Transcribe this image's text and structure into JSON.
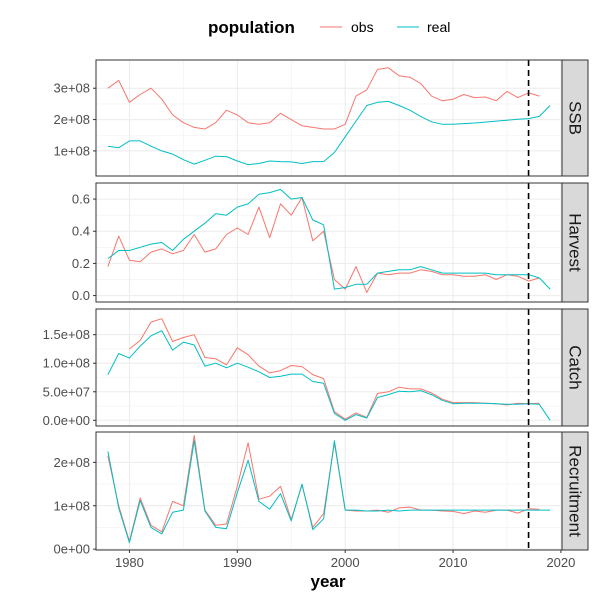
{
  "chart_data": {
    "type": "line",
    "xlabel": "year",
    "legend": {
      "title": "population",
      "position": "top",
      "entries": [
        "obs",
        "real"
      ]
    },
    "colors": {
      "obs": "#F8766D",
      "real": "#00BFC4"
    },
    "vline": {
      "x": 2017,
      "style": "dashed",
      "color": "#000000"
    },
    "x_axis": {
      "ticks": [
        1980,
        1990,
        2000,
        2010,
        2020
      ],
      "tick_labels": [
        "1980",
        "1990",
        "2000",
        "2010",
        "2020"
      ],
      "range": [
        1976.9,
        2020.1
      ]
    },
    "grid": true,
    "panels": [
      {
        "strip": "SSB",
        "ylim": [
          20000000,
          390000000
        ],
        "ticks": [
          100000000,
          200000000,
          300000000
        ],
        "tick_labels": [
          "1e+08",
          "2e+08",
          "3e+08"
        ],
        "series": [
          {
            "name": "obs",
            "x": [
              1978,
              1979,
              1980,
              1981,
              1982,
              1983,
              1984,
              1985,
              1986,
              1987,
              1988,
              1989,
              1990,
              1991,
              1992,
              1993,
              1994,
              1995,
              1996,
              1997,
              1998,
              1999,
              2000,
              2001,
              2002,
              2003,
              2004,
              2005,
              2006,
              2007,
              2008,
              2009,
              2010,
              2011,
              2012,
              2013,
              2014,
              2015,
              2016,
              2017,
              2018
            ],
            "values": [
              300000000,
              325000000,
              255000000,
              280000000,
              300000000,
              265000000,
              215000000,
              190000000,
              175000000,
              170000000,
              190000000,
              230000000,
              215000000,
              190000000,
              185000000,
              190000000,
              220000000,
              200000000,
              180000000,
              175000000,
              170000000,
              170000000,
              185000000,
              275000000,
              295000000,
              360000000,
              365000000,
              340000000,
              335000000,
              315000000,
              275000000,
              260000000,
              265000000,
              280000000,
              270000000,
              272000000,
              260000000,
              290000000,
              270000000,
              285000000,
              275000000
            ]
          },
          {
            "name": "real",
            "x": [
              1978,
              1979,
              1980,
              1981,
              1982,
              1983,
              1984,
              1985,
              1986,
              1987,
              1988,
              1989,
              1990,
              1991,
              1992,
              1993,
              1994,
              1995,
              1996,
              1997,
              1998,
              1999,
              2000,
              2001,
              2002,
              2003,
              2004,
              2005,
              2006,
              2007,
              2008,
              2009,
              2010,
              2011,
              2012,
              2013,
              2014,
              2015,
              2016,
              2017,
              2018,
              2019
            ],
            "values": [
              115000000,
              110000000,
              132000000,
              132000000,
              115000000,
              100000000,
              90000000,
              72000000,
              58000000,
              70000000,
              83000000,
              82000000,
              68000000,
              56000000,
              60000000,
              68000000,
              66000000,
              65000000,
              60000000,
              66000000,
              66000000,
              95000000,
              145000000,
              195000000,
              245000000,
              255000000,
              258000000,
              245000000,
              230000000,
              210000000,
              193000000,
              185000000,
              185000000,
              187000000,
              189000000,
              192000000,
              195000000,
              198000000,
              201000000,
              203000000,
              210000000,
              245000000
            ]
          }
        ]
      },
      {
        "strip": "Harvest",
        "ylim": [
          -0.04,
          0.7
        ],
        "ticks": [
          0,
          0.2,
          0.4,
          0.6
        ],
        "tick_labels": [
          "0.0",
          "0.2",
          "0.4",
          "0.6"
        ],
        "series": [
          {
            "name": "obs",
            "x": [
              1978,
              1979,
              1980,
              1981,
              1982,
              1983,
              1984,
              1985,
              1986,
              1987,
              1988,
              1989,
              1990,
              1991,
              1992,
              1993,
              1994,
              1995,
              1996,
              1997,
              1998,
              1999,
              2000,
              2001,
              2002,
              2003,
              2004,
              2005,
              2006,
              2007,
              2008,
              2009,
              2010,
              2011,
              2012,
              2013,
              2014,
              2015,
              2016,
              2017,
              2018
            ],
            "values": [
              0.18,
              0.37,
              0.22,
              0.21,
              0.27,
              0.29,
              0.26,
              0.28,
              0.38,
              0.27,
              0.29,
              0.38,
              0.42,
              0.38,
              0.55,
              0.36,
              0.57,
              0.5,
              0.61,
              0.34,
              0.4,
              0.1,
              0.04,
              0.18,
              0.02,
              0.14,
              0.13,
              0.14,
              0.14,
              0.16,
              0.15,
              0.13,
              0.13,
              0.12,
              0.12,
              0.13,
              0.1,
              0.13,
              0.12,
              0.09,
              0.11
            ]
          },
          {
            "name": "real",
            "x": [
              1978,
              1979,
              1980,
              1981,
              1982,
              1983,
              1984,
              1985,
              1986,
              1987,
              1988,
              1989,
              1990,
              1991,
              1992,
              1993,
              1994,
              1995,
              1996,
              1997,
              1998,
              1999,
              2000,
              2001,
              2002,
              2003,
              2004,
              2005,
              2006,
              2007,
              2008,
              2009,
              2010,
              2011,
              2012,
              2013,
              2014,
              2015,
              2016,
              2017,
              2018,
              2019
            ],
            "values": [
              0.23,
              0.28,
              0.28,
              0.3,
              0.32,
              0.33,
              0.28,
              0.35,
              0.4,
              0.45,
              0.51,
              0.5,
              0.55,
              0.57,
              0.63,
              0.64,
              0.66,
              0.6,
              0.61,
              0.47,
              0.44,
              0.04,
              0.05,
              0.07,
              0.07,
              0.14,
              0.15,
              0.16,
              0.16,
              0.18,
              0.16,
              0.14,
              0.14,
              0.14,
              0.14,
              0.14,
              0.13,
              0.13,
              0.13,
              0.13,
              0.11,
              0.04
            ]
          }
        ]
      },
      {
        "strip": "Catch",
        "ylim": [
          -10000000,
          195000000
        ],
        "ticks": [
          0,
          50000000,
          100000000,
          150000000
        ],
        "tick_labels": [
          "0.0e+00",
          "5.0e+07",
          "1.0e+08",
          "1.5e+08"
        ],
        "series": [
          {
            "name": "obs",
            "x": [
              1980,
              1981,
              1982,
              1983,
              1984,
              1985,
              1986,
              1987,
              1988,
              1989,
              1990,
              1991,
              1992,
              1993,
              1994,
              1995,
              1996,
              1997,
              1998,
              1999,
              2000,
              2001,
              2002,
              2003,
              2004,
              2005,
              2006,
              2007,
              2008,
              2009,
              2010,
              2011,
              2012,
              2013,
              2014,
              2015,
              2016,
              2017,
              2018
            ],
            "values": [
              125000000,
              140000000,
              172000000,
              178000000,
              138000000,
              145000000,
              150000000,
              110000000,
              108000000,
              97000000,
              127000000,
              115000000,
              95000000,
              83000000,
              87000000,
              96000000,
              94000000,
              80000000,
              73000000,
              15000000,
              2000000,
              13000000,
              5000000,
              47000000,
              50000000,
              58000000,
              55000000,
              55000000,
              48000000,
              37000000,
              31000000,
              31000000,
              31000000,
              30000000,
              29000000,
              27000000,
              30000000,
              29000000,
              30000000
            ]
          },
          {
            "name": "real",
            "x": [
              1978,
              1979,
              1980,
              1981,
              1982,
              1983,
              1984,
              1985,
              1986,
              1987,
              1988,
              1989,
              1990,
              1991,
              1992,
              1993,
              1994,
              1995,
              1996,
              1997,
              1998,
              1999,
              2000,
              2001,
              2002,
              2003,
              2004,
              2005,
              2006,
              2007,
              2008,
              2009,
              2010,
              2011,
              2012,
              2013,
              2014,
              2015,
              2016,
              2017,
              2018,
              2019
            ],
            "values": [
              80000000,
              117000000,
              109000000,
              130000000,
              148000000,
              157000000,
              123000000,
              137000000,
              132000000,
              95000000,
              100000000,
              92000000,
              100000000,
              93000000,
              85000000,
              75000000,
              77000000,
              81000000,
              81000000,
              68000000,
              65000000,
              12000000,
              0,
              10000000,
              4000000,
              40000000,
              45000000,
              51000000,
              50000000,
              52000000,
              45000000,
              35000000,
              29000000,
              30000000,
              30000000,
              30000000,
              29000000,
              28000000,
              28000000,
              29000000,
              28000000,
              0
            ]
          }
        ]
      },
      {
        "strip": "Recruitment",
        "ylim": [
          -2000000,
          270000000
        ],
        "ticks": [
          0,
          100000000,
          200000000
        ],
        "tick_labels": [
          "0e+00",
          "1e+08",
          "2e+08"
        ],
        "series": [
          {
            "name": "obs",
            "x": [
              1978,
              1979,
              1980,
              1981,
              1982,
              1983,
              1984,
              1985,
              1986,
              1987,
              1988,
              1989,
              1990,
              1991,
              1992,
              1993,
              1994,
              1995,
              1996,
              1997,
              1998,
              1999,
              2000,
              2001,
              2002,
              2003,
              2004,
              2005,
              2006,
              2007,
              2008,
              2009,
              2010,
              2011,
              2012,
              2013,
              2014,
              2015,
              2016,
              2017,
              2018
            ],
            "values": [
              215000000,
              100000000,
              18000000,
              118000000,
              55000000,
              40000000,
              110000000,
              100000000,
              262000000,
              90000000,
              55000000,
              58000000,
              145000000,
              245000000,
              115000000,
              122000000,
              145000000,
              68000000,
              148000000,
              50000000,
              82000000,
              245000000,
              90000000,
              88000000,
              88000000,
              90000000,
              85000000,
              95000000,
              97000000,
              90000000,
              90000000,
              88000000,
              87000000,
              82000000,
              88000000,
              85000000,
              90000000,
              90000000,
              83000000,
              93000000,
              92000000
            ]
          },
          {
            "name": "real",
            "x": [
              1978,
              1979,
              1980,
              1981,
              1982,
              1983,
              1984,
              1985,
              1986,
              1987,
              1988,
              1989,
              1990,
              1991,
              1992,
              1993,
              1994,
              1995,
              1996,
              1997,
              1998,
              1999,
              2000,
              2001,
              2002,
              2003,
              2004,
              2005,
              2006,
              2007,
              2008,
              2009,
              2010,
              2011,
              2012,
              2013,
              2014,
              2015,
              2016,
              2017,
              2018,
              2019
            ],
            "values": [
              225000000,
              95000000,
              15000000,
              112000000,
              50000000,
              35000000,
              85000000,
              90000000,
              250000000,
              88000000,
              50000000,
              47000000,
              130000000,
              205000000,
              110000000,
              92000000,
              128000000,
              65000000,
              150000000,
              45000000,
              70000000,
              250000000,
              90000000,
              90000000,
              88000000,
              88000000,
              90000000,
              88000000,
              90000000,
              90000000,
              90000000,
              90000000,
              90000000,
              90000000,
              90000000,
              90000000,
              90000000,
              90000000,
              90000000,
              90000000,
              90000000,
              90000000
            ]
          }
        ]
      }
    ]
  }
}
